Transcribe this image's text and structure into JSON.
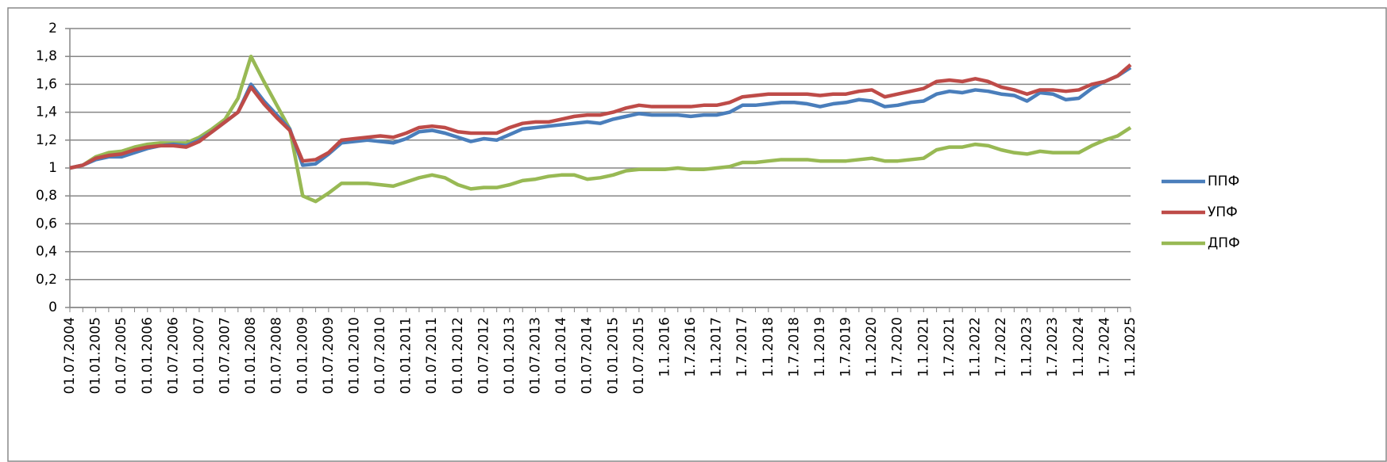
{
  "chart_data": {
    "type": "line",
    "categories": [
      "01.07.2004",
      null,
      "01.01.2005",
      null,
      "01.07.2005",
      null,
      "01.01.2006",
      null,
      "01.07.2006",
      null,
      "01.01.2007",
      null,
      "01.07.2007",
      null,
      "01.01.2008",
      null,
      "01.07.2008",
      null,
      "01.01.2009",
      null,
      "01.07.2009",
      null,
      "01.01.2010",
      null,
      "01.07.2010",
      null,
      "01.01.2011",
      null,
      "01.07.2011",
      null,
      "01.01.2012",
      null,
      "01.07.2012",
      null,
      "01.01.2013",
      null,
      "01.07.2013",
      null,
      "01.01.2014",
      null,
      "01.07.2014",
      null,
      "01.01.2015",
      null,
      "01.07.2015",
      null,
      "1.1.2016",
      null,
      "1.7.2016",
      null,
      "1.1.2017",
      null,
      "1.7.2017",
      null,
      "1.1.2018",
      null,
      "1.7.2018",
      null,
      "1.1.2019",
      null,
      "1.7.2019",
      null,
      "1.1.2020",
      null,
      "1.7.2020",
      null,
      "1.1.2021",
      null,
      "1.7.2021",
      null,
      "1.1.2022",
      null,
      "1.7.2022",
      null,
      "1.1.2023",
      null,
      "1.7.2023",
      null,
      "1.1.2024",
      null,
      "1.7.2024",
      null,
      "1.1.2025"
    ],
    "series": [
      {
        "name": "ППФ",
        "color": "#4a7ebb",
        "values": [
          1.0,
          1.02,
          1.06,
          1.08,
          1.08,
          1.11,
          1.14,
          1.16,
          1.17,
          1.16,
          1.2,
          1.26,
          1.33,
          1.4,
          1.6,
          1.48,
          1.38,
          1.28,
          1.02,
          1.03,
          1.1,
          1.18,
          1.19,
          1.2,
          1.19,
          1.18,
          1.21,
          1.26,
          1.27,
          1.25,
          1.22,
          1.19,
          1.21,
          1.2,
          1.24,
          1.28,
          1.29,
          1.3,
          1.31,
          1.32,
          1.33,
          1.32,
          1.35,
          1.37,
          1.39,
          1.38,
          1.38,
          1.38,
          1.37,
          1.38,
          1.38,
          1.4,
          1.45,
          1.45,
          1.46,
          1.47,
          1.47,
          1.46,
          1.44,
          1.46,
          1.47,
          1.49,
          1.48,
          1.44,
          1.45,
          1.47,
          1.48,
          1.53,
          1.55,
          1.54,
          1.56,
          1.55,
          1.53,
          1.52,
          1.48,
          1.54,
          1.53,
          1.49,
          1.5,
          1.57,
          1.62,
          1.66,
          1.72
        ]
      },
      {
        "name": "УПФ",
        "color": "#be4b48",
        "values": [
          1.0,
          1.02,
          1.07,
          1.09,
          1.1,
          1.13,
          1.15,
          1.16,
          1.16,
          1.15,
          1.19,
          1.26,
          1.33,
          1.4,
          1.58,
          1.46,
          1.36,
          1.27,
          1.05,
          1.06,
          1.11,
          1.2,
          1.21,
          1.22,
          1.23,
          1.22,
          1.25,
          1.29,
          1.3,
          1.29,
          1.26,
          1.25,
          1.25,
          1.25,
          1.29,
          1.32,
          1.33,
          1.33,
          1.35,
          1.37,
          1.38,
          1.38,
          1.4,
          1.43,
          1.45,
          1.44,
          1.44,
          1.44,
          1.44,
          1.45,
          1.45,
          1.47,
          1.51,
          1.52,
          1.53,
          1.53,
          1.53,
          1.53,
          1.52,
          1.53,
          1.53,
          1.55,
          1.56,
          1.51,
          1.53,
          1.55,
          1.57,
          1.62,
          1.63,
          1.62,
          1.64,
          1.62,
          1.58,
          1.56,
          1.53,
          1.56,
          1.56,
          1.55,
          1.56,
          1.6,
          1.62,
          1.66,
          1.74
        ]
      },
      {
        "name": "ДПФ",
        "color": "#98b954",
        "values": [
          1.0,
          1.02,
          1.08,
          1.11,
          1.12,
          1.15,
          1.17,
          1.18,
          1.18,
          1.18,
          1.22,
          1.28,
          1.35,
          1.5,
          1.8,
          1.62,
          1.45,
          1.28,
          0.8,
          0.76,
          0.82,
          0.89,
          0.89,
          0.89,
          0.88,
          0.87,
          0.9,
          0.93,
          0.95,
          0.93,
          0.88,
          0.85,
          0.86,
          0.86,
          0.88,
          0.91,
          0.92,
          0.94,
          0.95,
          0.95,
          0.92,
          0.93,
          0.95,
          0.98,
          0.99,
          0.99,
          0.99,
          1.0,
          0.99,
          0.99,
          1.0,
          1.01,
          1.04,
          1.04,
          1.05,
          1.06,
          1.06,
          1.06,
          1.05,
          1.05,
          1.05,
          1.06,
          1.07,
          1.05,
          1.05,
          1.06,
          1.07,
          1.13,
          1.15,
          1.15,
          1.17,
          1.16,
          1.13,
          1.11,
          1.1,
          1.12,
          1.11,
          1.11,
          1.11,
          1.16,
          1.2,
          1.23,
          1.29
        ]
      }
    ],
    "ylim": [
      0,
      2
    ],
    "yticks": [
      0,
      {
        "value": 0.2,
        "label": "0,2"
      },
      {
        "value": 0.4,
        "label": "0,4"
      },
      {
        "value": 0.6,
        "label": "0,6"
      },
      {
        "value": 0.8,
        "label": "0,8"
      },
      1,
      {
        "value": 1.2,
        "label": "1,2"
      },
      {
        "value": 1.4,
        "label": "1,4"
      },
      {
        "value": 1.6,
        "label": "1,6"
      },
      {
        "value": 1.8,
        "label": "1,8"
      },
      2
    ],
    "grid": true,
    "legend": "right"
  }
}
